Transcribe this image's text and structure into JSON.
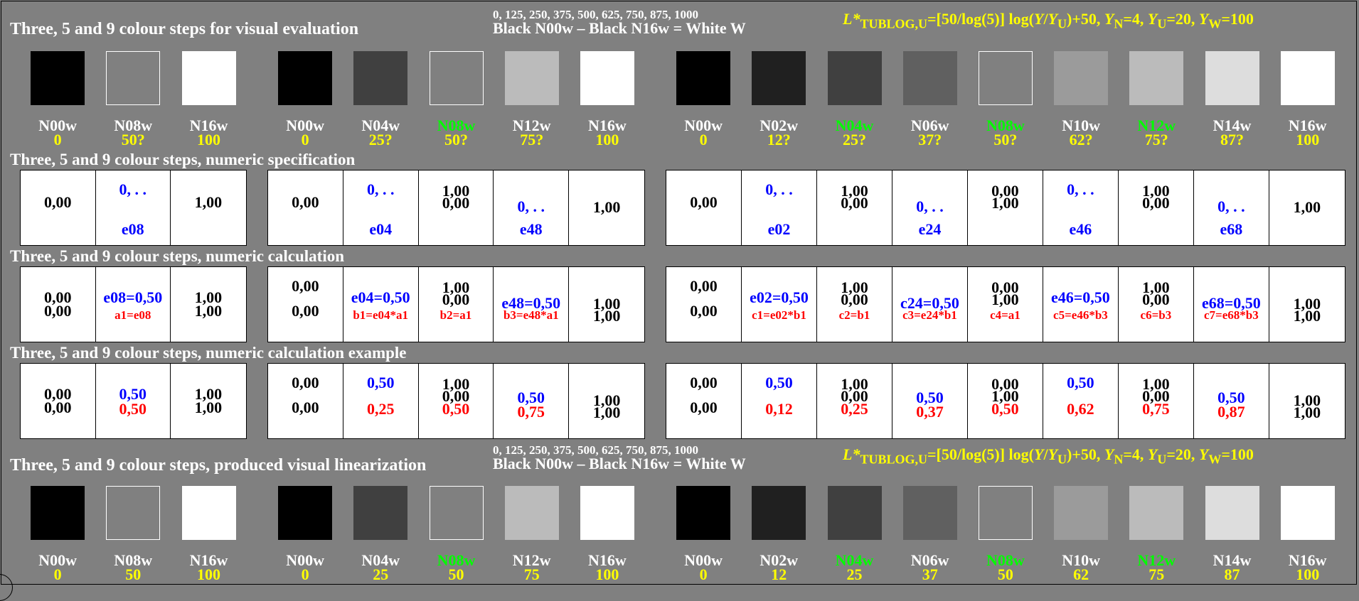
{
  "titles": {
    "visual": "Three, 5 and 9 colour steps for visual evaluation",
    "spec": "Three, 5 and 9 colour steps, numeric specification",
    "calc": "Three, 5 and 9 colour steps, numeric calculation",
    "example": "Three, 5 and 9 colour steps, numeric calculation example",
    "produced": "Three, 5 and 9 colour steps, produced visual linearization"
  },
  "header": {
    "scale_values": "0, 125, 250, 375, 500, 625, 750, 875, 1000",
    "black_white": "Black N00w – Black N16w = White W",
    "formula_prefix": "L*",
    "formula_sub": "TUBLOG,U",
    "formula_body": "=[50/log(5)] log(Y/YU)+50, YN=4, YU=20, YW=100"
  },
  "colors": {
    "background": "#808080",
    "label_yellow": "#ffff00",
    "label_green": "#00ff00",
    "text_blue": "#0000ff",
    "text_red": "#ff0000"
  },
  "swatch_fills": {
    "N00w": "#000000",
    "N02w": "#202020",
    "N04w": "#404040",
    "N06w": "#606060",
    "N08w": "#808080",
    "N10w": "#9b9b9b",
    "N12w": "#bbbbbb",
    "N14w": "#dddddd",
    "N16w": "#ffffff"
  },
  "top_labels": {
    "g3": [
      {
        "name": "N00w",
        "value": "0",
        "green": false
      },
      {
        "name": "N08w",
        "value": "50?",
        "green": false
      },
      {
        "name": "N16w",
        "value": "100",
        "green": false
      }
    ],
    "g5": [
      {
        "name": "N00w",
        "value": "0",
        "green": false
      },
      {
        "name": "N04w",
        "value": "25?",
        "green": false
      },
      {
        "name": "N08w",
        "value": "50?",
        "green": true
      },
      {
        "name": "N12w",
        "value": "75?",
        "green": false
      },
      {
        "name": "N16w",
        "value": "100",
        "green": false
      }
    ],
    "g9": [
      {
        "name": "N00w",
        "value": "0",
        "green": false
      },
      {
        "name": "N02w",
        "value": "12?",
        "green": false
      },
      {
        "name": "N04w",
        "value": "25?",
        "green": true
      },
      {
        "name": "N06w",
        "value": "37?",
        "green": false
      },
      {
        "name": "N08w",
        "value": "50?",
        "green": true
      },
      {
        "name": "N10w",
        "value": "62?",
        "green": false
      },
      {
        "name": "N12w",
        "value": "75?",
        "green": true
      },
      {
        "name": "N14w",
        "value": "87?",
        "green": false
      },
      {
        "name": "N16w",
        "value": "100",
        "green": false
      }
    ]
  },
  "bottom_labels": {
    "g3": [
      {
        "name": "N00w",
        "value": "0",
        "green": false
      },
      {
        "name": "N08w",
        "value": "50",
        "green": false
      },
      {
        "name": "N16w",
        "value": "100",
        "green": false
      }
    ],
    "g5": [
      {
        "name": "N00w",
        "value": "0",
        "green": false
      },
      {
        "name": "N04w",
        "value": "25",
        "green": false
      },
      {
        "name": "N08w",
        "value": "50",
        "green": true
      },
      {
        "name": "N12w",
        "value": "75",
        "green": false
      },
      {
        "name": "N16w",
        "value": "100",
        "green": false
      }
    ],
    "g9": [
      {
        "name": "N00w",
        "value": "0",
        "green": false
      },
      {
        "name": "N02w",
        "value": "12",
        "green": false
      },
      {
        "name": "N04w",
        "value": "25",
        "green": true
      },
      {
        "name": "N06w",
        "value": "37",
        "green": false
      },
      {
        "name": "N08w",
        "value": "50",
        "green": true
      },
      {
        "name": "N10w",
        "value": "62",
        "green": false
      },
      {
        "name": "N12w",
        "value": "75",
        "green": true
      },
      {
        "name": "N14w",
        "value": "87",
        "green": false
      },
      {
        "name": "N16w",
        "value": "100",
        "green": false
      }
    ]
  },
  "spec_table": {
    "g3": [
      {
        "a": "0,00"
      },
      {
        "c": "0, . .",
        "d": "e08"
      },
      {
        "a": "1,00"
      }
    ],
    "g5": [
      {
        "a": "0,00"
      },
      {
        "c": "0, . .",
        "d": "e04"
      },
      {
        "e": "1,00",
        "f": "0,00"
      },
      {
        "g": "0, . .",
        "d": "e48"
      },
      {
        "h": "1,00"
      }
    ],
    "g9": [
      {
        "a": "0,00"
      },
      {
        "c": "0, . .",
        "d": "e02"
      },
      {
        "e": "1,00",
        "f": "0,00"
      },
      {
        "g": "0, . .",
        "d": "e24"
      },
      {
        "e": "0,00",
        "f": "1,00"
      },
      {
        "c": "0, . .",
        "d": "e46"
      },
      {
        "e": "1,00",
        "f": "0,00"
      },
      {
        "g": "0, . .",
        "d": "e68"
      },
      {
        "h": "1,00"
      }
    ]
  },
  "calc_table": {
    "g3": [
      {
        "k": "0,00",
        "l": "0,00"
      },
      {
        "b": "e08=0,50",
        "r": "a1=e08"
      },
      {
        "k": "1,00",
        "l": "1,00"
      }
    ],
    "g5": [
      {
        "m": "0,00",
        "n": "0,00"
      },
      {
        "b": "e04=0,50",
        "s": "b1=e04*a1"
      },
      {
        "e": "1,00",
        "f": "0,00",
        "s": "b2=a1"
      },
      {
        "p": "e48=0,50",
        "s": "b3=e48*a1"
      },
      {
        "h": "1,00",
        "q": "1,00"
      }
    ],
    "g9": [
      {
        "m": "0,00",
        "n": "0,00"
      },
      {
        "b": "e02=0,50",
        "s": "c1=e02*b1"
      },
      {
        "e": "1,00",
        "f": "0,00",
        "s": "c2=b1"
      },
      {
        "p": "c24=0,50",
        "s": "c3=e24*b1"
      },
      {
        "e": "0,00",
        "f": "1,00",
        "s": "c4=a1"
      },
      {
        "b": "e46=0,50",
        "s": "c5=e46*b3"
      },
      {
        "e": "1,00",
        "f": "0,00",
        "s": "c6=b3"
      },
      {
        "p": "e68=0,50",
        "s": "c7=e68*b3"
      },
      {
        "h": "1,00",
        "q": "1,00"
      }
    ]
  },
  "example_table": {
    "g3": [
      {
        "k": "0,00",
        "l": "0,00"
      },
      {
        "bk": "0,50",
        "rk": "0,50"
      },
      {
        "k": "1,00",
        "l": "1,00"
      }
    ],
    "g5": [
      {
        "m": "0,00",
        "n": "0,00"
      },
      {
        "bm": "0,50",
        "rn": "0,25"
      },
      {
        "e": "1,00",
        "f": "0,00",
        "rx": "0,50"
      },
      {
        "bh": "0,50",
        "rq": "0,75"
      },
      {
        "h": "1,00",
        "q": "1,00"
      }
    ],
    "g9": [
      {
        "m": "0,00",
        "n": "0,00"
      },
      {
        "bm": "0,50",
        "rn": "0,12"
      },
      {
        "e": "1,00",
        "f": "0,00",
        "rx": "0,25"
      },
      {
        "bh": "0,50",
        "rq": "0,37"
      },
      {
        "e": "0,00",
        "f": "1,00",
        "rx": "0,50"
      },
      {
        "bm": "0,50",
        "rn": "0,62"
      },
      {
        "e": "1,00",
        "f": "0,00",
        "rx": "0,75"
      },
      {
        "bh": "0,50",
        "rq": "0,87"
      },
      {
        "h": "1,00",
        "q": "1,00"
      }
    ]
  }
}
